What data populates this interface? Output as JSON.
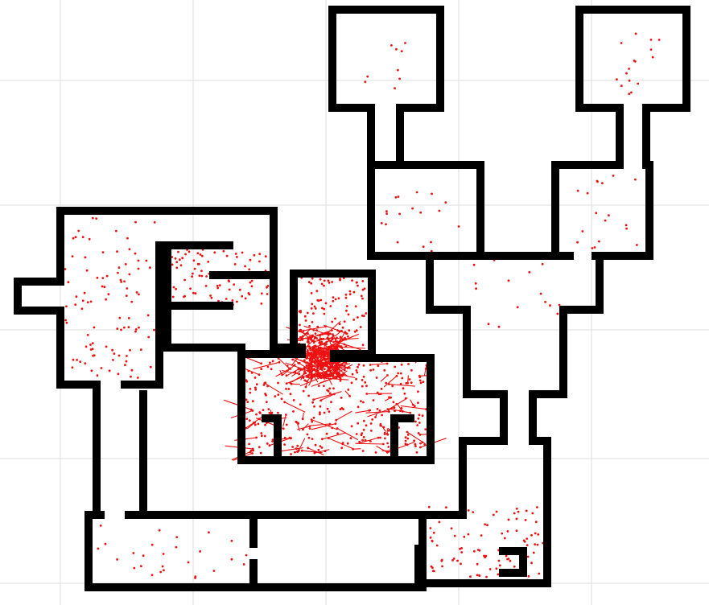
{
  "map": {
    "background_color": "#ffffff",
    "grid_color": "#dedede",
    "wall_color": "#000000",
    "trace_color": "#ee1111",
    "grid_visible": true,
    "legend": "none",
    "text_labels": [],
    "rooms": [
      {
        "id": "top-center-chamber"
      },
      {
        "id": "top-right-chamber"
      },
      {
        "id": "left-lobby"
      },
      {
        "id": "left-stacked-offices"
      },
      {
        "id": "central-hall"
      },
      {
        "id": "central-alcove"
      },
      {
        "id": "north-center-room"
      },
      {
        "id": "north-right-room"
      },
      {
        "id": "junction-room"
      },
      {
        "id": "south-corridor-hall"
      },
      {
        "id": "southeast-room"
      }
    ],
    "trace_density_relative": {
      "top-center-chamber": "low",
      "top-right-chamber": "cluster",
      "left-lobby": "medium",
      "left-stacked-offices": "medium",
      "central-hall": "very-high",
      "central-alcove": "medium",
      "north-center-room": "low",
      "north-right-room": "low",
      "junction-room": "low",
      "south-corridor-hall": "low",
      "southeast-room": "medium"
    }
  }
}
